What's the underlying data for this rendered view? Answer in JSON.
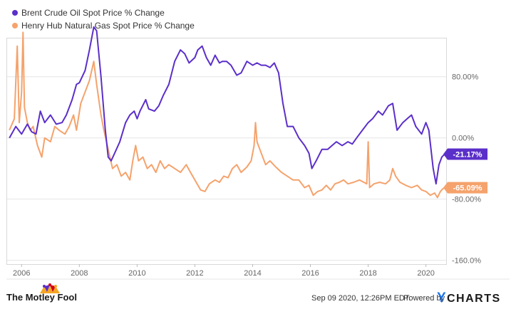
{
  "chart_data": {
    "type": "line",
    "title": "",
    "xlabel": "",
    "ylabel": "",
    "x_range": [
      2005.5,
      2020.7
    ],
    "y_range": [
      -165,
      130
    ],
    "x_ticks": [
      {
        "value": 2006,
        "label": "2006"
      },
      {
        "value": 2008,
        "label": "2008"
      },
      {
        "value": 2010,
        "label": "2010"
      },
      {
        "value": 2012,
        "label": "2012"
      },
      {
        "value": 2014,
        "label": "2014"
      },
      {
        "value": 2016,
        "label": "2016"
      },
      {
        "value": 2018,
        "label": "2018"
      },
      {
        "value": 2020,
        "label": "2020"
      }
    ],
    "y_ticks": [
      {
        "value": 80,
        "label": "80.00%"
      },
      {
        "value": 0,
        "label": "0.00%"
      },
      {
        "value": -80,
        "label": "-80.00%"
      },
      {
        "value": -160,
        "label": "-160.0%"
      }
    ],
    "grid": "horizontal",
    "legend_position": "top-left",
    "series": [
      {
        "name": "Brent Crude Oil Spot Price % Change",
        "color": "#5b2fc9",
        "end_label": "-21.17%",
        "points": [
          [
            2005.58,
            0
          ],
          [
            2005.8,
            15
          ],
          [
            2006.0,
            5
          ],
          [
            2006.2,
            18
          ],
          [
            2006.35,
            8
          ],
          [
            2006.5,
            5
          ],
          [
            2006.65,
            35
          ],
          [
            2006.8,
            20
          ],
          [
            2007.0,
            30
          ],
          [
            2007.2,
            18
          ],
          [
            2007.4,
            20
          ],
          [
            2007.55,
            30
          ],
          [
            2007.75,
            50
          ],
          [
            2007.9,
            70
          ],
          [
            2008.0,
            72
          ],
          [
            2008.2,
            88
          ],
          [
            2008.35,
            115
          ],
          [
            2008.5,
            145
          ],
          [
            2008.6,
            140
          ],
          [
            2008.75,
            80
          ],
          [
            2008.9,
            10
          ],
          [
            2009.0,
            -25
          ],
          [
            2009.1,
            -30
          ],
          [
            2009.2,
            -22
          ],
          [
            2009.4,
            -5
          ],
          [
            2009.6,
            20
          ],
          [
            2009.75,
            30
          ],
          [
            2009.9,
            35
          ],
          [
            2010.0,
            25
          ],
          [
            2010.1,
            35
          ],
          [
            2010.3,
            50
          ],
          [
            2010.4,
            38
          ],
          [
            2010.6,
            35
          ],
          [
            2010.75,
            42
          ],
          [
            2010.9,
            55
          ],
          [
            2011.1,
            70
          ],
          [
            2011.3,
            100
          ],
          [
            2011.5,
            115
          ],
          [
            2011.65,
            110
          ],
          [
            2011.8,
            98
          ],
          [
            2012.0,
            105
          ],
          [
            2012.1,
            115
          ],
          [
            2012.25,
            120
          ],
          [
            2012.4,
            105
          ],
          [
            2012.55,
            95
          ],
          [
            2012.7,
            108
          ],
          [
            2012.85,
            98
          ],
          [
            2012.95,
            100
          ],
          [
            2013.1,
            100
          ],
          [
            2013.25,
            95
          ],
          [
            2013.45,
            82
          ],
          [
            2013.6,
            85
          ],
          [
            2013.8,
            100
          ],
          [
            2014.0,
            95
          ],
          [
            2014.15,
            98
          ],
          [
            2014.3,
            95
          ],
          [
            2014.45,
            95
          ],
          [
            2014.6,
            92
          ],
          [
            2014.75,
            98
          ],
          [
            2014.9,
            85
          ],
          [
            2015.05,
            45
          ],
          [
            2015.2,
            15
          ],
          [
            2015.4,
            15
          ],
          [
            2015.6,
            0
          ],
          [
            2015.8,
            -10
          ],
          [
            2015.95,
            -20
          ],
          [
            2016.05,
            -40
          ],
          [
            2016.2,
            -30
          ],
          [
            2016.4,
            -15
          ],
          [
            2016.6,
            -15
          ],
          [
            2016.75,
            -10
          ],
          [
            2016.9,
            -5
          ],
          [
            2017.1,
            -10
          ],
          [
            2017.3,
            -5
          ],
          [
            2017.45,
            -8
          ],
          [
            2017.6,
            0
          ],
          [
            2017.8,
            10
          ],
          [
            2018.0,
            20
          ],
          [
            2018.15,
            25
          ],
          [
            2018.35,
            35
          ],
          [
            2018.5,
            30
          ],
          [
            2018.7,
            42
          ],
          [
            2018.85,
            45
          ],
          [
            2019.0,
            10
          ],
          [
            2019.2,
            20
          ],
          [
            2019.35,
            25
          ],
          [
            2019.5,
            30
          ],
          [
            2019.65,
            15
          ],
          [
            2019.85,
            5
          ],
          [
            2020.0,
            20
          ],
          [
            2020.1,
            10
          ],
          [
            2020.25,
            -40
          ],
          [
            2020.35,
            -60
          ],
          [
            2020.45,
            -35
          ],
          [
            2020.55,
            -25
          ],
          [
            2020.65,
            -21.17
          ]
        ]
      },
      {
        "name": "Henry Hub Natural Gas Spot Price % Change",
        "color": "#f5a26c",
        "end_label": "-65.09%",
        "points": [
          [
            2005.58,
            10
          ],
          [
            2005.75,
            25
          ],
          [
            2005.85,
            120
          ],
          [
            2005.92,
            20
          ],
          [
            2006.0,
            60
          ],
          [
            2006.05,
            138
          ],
          [
            2006.1,
            40
          ],
          [
            2006.2,
            20
          ],
          [
            2006.3,
            10
          ],
          [
            2006.4,
            15
          ],
          [
            2006.55,
            -10
          ],
          [
            2006.7,
            -25
          ],
          [
            2006.8,
            0
          ],
          [
            2007.0,
            -5
          ],
          [
            2007.15,
            15
          ],
          [
            2007.3,
            10
          ],
          [
            2007.5,
            5
          ],
          [
            2007.65,
            15
          ],
          [
            2007.8,
            30
          ],
          [
            2007.9,
            10
          ],
          [
            2008.05,
            45
          ],
          [
            2008.2,
            60
          ],
          [
            2008.35,
            75
          ],
          [
            2008.5,
            100
          ],
          [
            2008.6,
            70
          ],
          [
            2008.75,
            30
          ],
          [
            2008.85,
            10
          ],
          [
            2009.0,
            -15
          ],
          [
            2009.15,
            -40
          ],
          [
            2009.3,
            -35
          ],
          [
            2009.45,
            -50
          ],
          [
            2009.6,
            -45
          ],
          [
            2009.75,
            -55
          ],
          [
            2009.85,
            -30
          ],
          [
            2009.95,
            -10
          ],
          [
            2010.05,
            -30
          ],
          [
            2010.2,
            -25
          ],
          [
            2010.35,
            -40
          ],
          [
            2010.5,
            -35
          ],
          [
            2010.65,
            -45
          ],
          [
            2010.8,
            -30
          ],
          [
            2010.95,
            -40
          ],
          [
            2011.1,
            -35
          ],
          [
            2011.3,
            -40
          ],
          [
            2011.5,
            -45
          ],
          [
            2011.7,
            -35
          ],
          [
            2011.85,
            -45
          ],
          [
            2012.0,
            -55
          ],
          [
            2012.2,
            -68
          ],
          [
            2012.35,
            -70
          ],
          [
            2012.5,
            -60
          ],
          [
            2012.7,
            -55
          ],
          [
            2012.85,
            -58
          ],
          [
            2013.0,
            -50
          ],
          [
            2013.15,
            -52
          ],
          [
            2013.3,
            -40
          ],
          [
            2013.45,
            -35
          ],
          [
            2013.6,
            -45
          ],
          [
            2013.8,
            -38
          ],
          [
            2013.95,
            -30
          ],
          [
            2014.05,
            -10
          ],
          [
            2014.1,
            20
          ],
          [
            2014.15,
            -5
          ],
          [
            2014.3,
            -20
          ],
          [
            2014.45,
            -35
          ],
          [
            2014.6,
            -30
          ],
          [
            2014.8,
            -38
          ],
          [
            2015.0,
            -45
          ],
          [
            2015.2,
            -50
          ],
          [
            2015.4,
            -55
          ],
          [
            2015.6,
            -55
          ],
          [
            2015.8,
            -65
          ],
          [
            2015.95,
            -62
          ],
          [
            2016.1,
            -75
          ],
          [
            2016.25,
            -70
          ],
          [
            2016.4,
            -68
          ],
          [
            2016.55,
            -62
          ],
          [
            2016.7,
            -68
          ],
          [
            2016.85,
            -60
          ],
          [
            2017.0,
            -58
          ],
          [
            2017.15,
            -55
          ],
          [
            2017.3,
            -60
          ],
          [
            2017.5,
            -58
          ],
          [
            2017.7,
            -55
          ],
          [
            2017.85,
            -58
          ],
          [
            2017.95,
            -60
          ],
          [
            2018.0,
            -5
          ],
          [
            2018.05,
            -65
          ],
          [
            2018.2,
            -60
          ],
          [
            2018.4,
            -58
          ],
          [
            2018.6,
            -60
          ],
          [
            2018.75,
            -55
          ],
          [
            2018.85,
            -40
          ],
          [
            2018.95,
            -50
          ],
          [
            2019.1,
            -58
          ],
          [
            2019.3,
            -62
          ],
          [
            2019.5,
            -65
          ],
          [
            2019.7,
            -62
          ],
          [
            2019.85,
            -68
          ],
          [
            2020.0,
            -70
          ],
          [
            2020.15,
            -75
          ],
          [
            2020.3,
            -72
          ],
          [
            2020.4,
            -78
          ],
          [
            2020.5,
            -70
          ],
          [
            2020.6,
            -66
          ],
          [
            2020.65,
            -65.09
          ]
        ]
      }
    ]
  },
  "footer": {
    "brand": "The Motley Fool",
    "timestamp": "Sep 09 2020, 12:26PM EDT.",
    "powered_by": "Powered by",
    "provider_y": "Y",
    "provider_name": "CHARTS"
  }
}
